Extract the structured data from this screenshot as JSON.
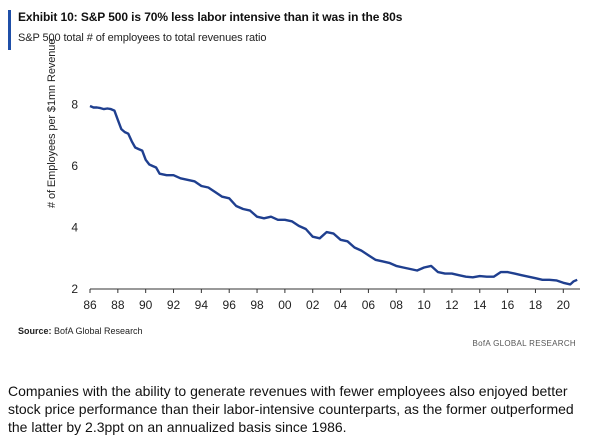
{
  "header": {
    "title": "Exhibit 10: S&P 500 is 70% less labor intensive than it was in the 80s",
    "subtitle": "S&P 500 total # of employees to total revenues ratio"
  },
  "footer": {
    "source_label": "Source:",
    "source_text": " BofA Global Research",
    "brand": "BofA GLOBAL RESEARCH"
  },
  "caption": "Companies with the ability to generate revenues with fewer employees also enjoyed better stock price performance than their labor-intensive counterparts, as the former outperformed the latter by 2.3ppt on an annualized basis since 1986.",
  "colors": {
    "line": "#1f3f8f",
    "accent_bar": "#1f4fa8"
  },
  "chart_data": {
    "type": "line",
    "ylabel": "# of Employees per $1mn Revenue",
    "xlabel": "",
    "ylim": [
      2,
      8.6
    ],
    "xlim": [
      1986,
      2021.2
    ],
    "yticks": [
      2,
      4,
      6,
      8
    ],
    "xticks": [
      1986,
      1988,
      1990,
      1992,
      1994,
      1996,
      1998,
      2000,
      2002,
      2004,
      2006,
      2008,
      2010,
      2012,
      2014,
      2016,
      2018,
      2020
    ],
    "xtick_labels": [
      "86",
      "88",
      "90",
      "92",
      "94",
      "96",
      "98",
      "00",
      "02",
      "04",
      "06",
      "08",
      "10",
      "12",
      "14",
      "16",
      "18",
      "20"
    ],
    "grid": false,
    "series": [
      {
        "x": [
          1986.0,
          1986.25,
          1986.5,
          1986.75,
          1987.0,
          1987.25,
          1987.5,
          1987.75,
          1988.0,
          1988.25,
          1988.5,
          1988.75,
          1989.0,
          1989.25,
          1989.5,
          1989.75,
          1990.0,
          1990.25,
          1990.5,
          1990.75,
          1991.0,
          1991.5,
          1992.0,
          1992.5,
          1993.0,
          1993.5,
          1994.0,
          1994.5,
          1995.0,
          1995.5,
          1996.0,
          1996.5,
          1997.0,
          1997.5,
          1998.0,
          1998.5,
          1999.0,
          1999.5,
          2000.0,
          2000.5,
          2001.0,
          2001.5,
          2002.0,
          2002.5,
          2003.0,
          2003.5,
          2004.0,
          2004.5,
          2005.0,
          2005.5,
          2006.0,
          2006.5,
          2007.0,
          2007.5,
          2008.0,
          2008.5,
          2009.0,
          2009.5,
          2010.0,
          2010.5,
          2011.0,
          2011.5,
          2012.0,
          2012.5,
          2013.0,
          2013.5,
          2014.0,
          2014.5,
          2015.0,
          2015.5,
          2016.0,
          2016.5,
          2017.0,
          2017.5,
          2018.0,
          2018.5,
          2019.0,
          2019.5,
          2020.0,
          2020.5,
          2020.75,
          2021.0
        ],
        "y": [
          7.95,
          7.9,
          7.9,
          7.88,
          7.85,
          7.87,
          7.85,
          7.8,
          7.5,
          7.2,
          7.1,
          7.05,
          6.8,
          6.6,
          6.55,
          6.5,
          6.2,
          6.05,
          6.0,
          5.95,
          5.75,
          5.7,
          5.7,
          5.6,
          5.55,
          5.5,
          5.35,
          5.3,
          5.15,
          5.0,
          4.95,
          4.7,
          4.6,
          4.55,
          4.35,
          4.3,
          4.35,
          4.25,
          4.25,
          4.2,
          4.05,
          3.95,
          3.7,
          3.65,
          3.85,
          3.8,
          3.6,
          3.55,
          3.35,
          3.25,
          3.1,
          2.95,
          2.9,
          2.85,
          2.75,
          2.7,
          2.65,
          2.6,
          2.7,
          2.75,
          2.55,
          2.5,
          2.5,
          2.45,
          2.4,
          2.38,
          2.42,
          2.4,
          2.4,
          2.55,
          2.55,
          2.5,
          2.45,
          2.4,
          2.35,
          2.3,
          2.3,
          2.28,
          2.2,
          2.15,
          2.25,
          2.3
        ]
      }
    ]
  }
}
